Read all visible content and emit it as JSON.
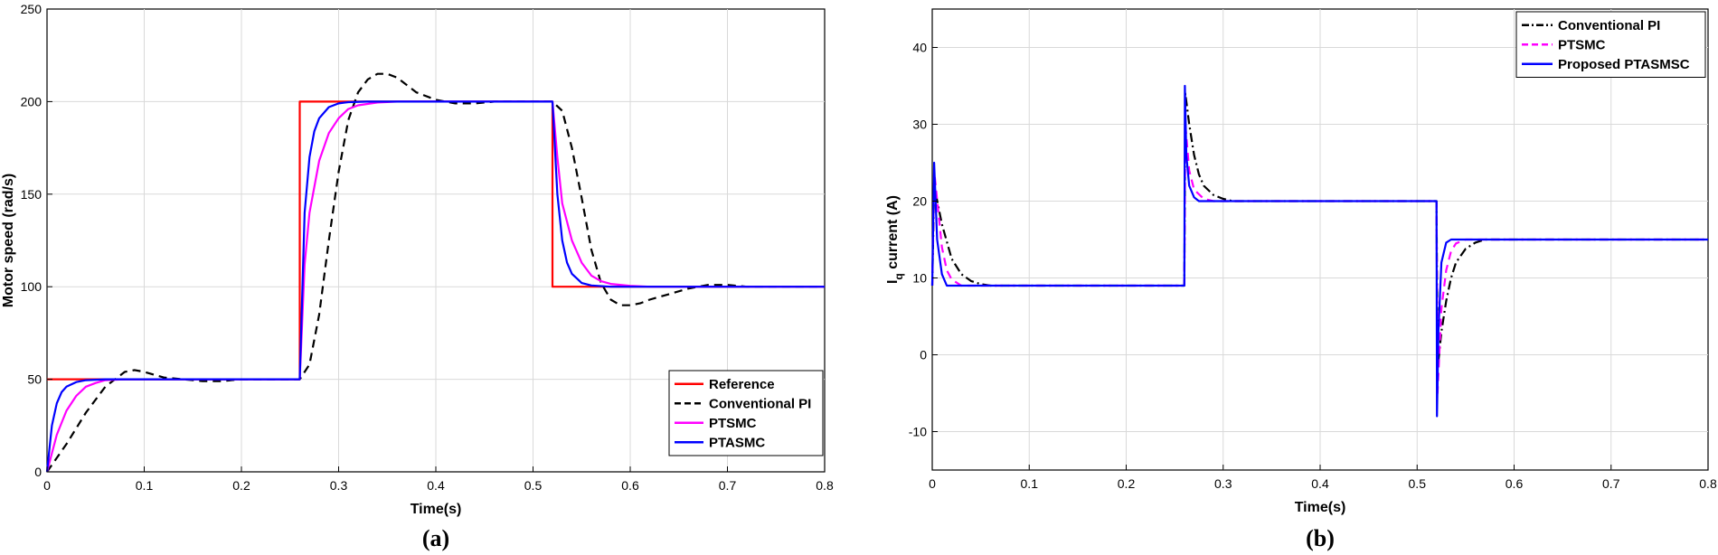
{
  "chart_data": [
    {
      "type": "line",
      "caption": "(a)",
      "xlabel": "Time(s)",
      "ylabel": "Motor speed (rad/s)",
      "xlim": [
        0,
        0.8
      ],
      "ylim": [
        0,
        250
      ],
      "xticks": [
        0,
        0.1,
        0.2,
        0.3,
        0.4,
        0.5,
        0.6,
        0.7,
        0.8
      ],
      "xtick_labels": [
        "0",
        "0.1",
        "0.2",
        "0.3",
        "0.4",
        "0.5",
        "0.6",
        "0.7",
        "0.8"
      ],
      "yticks": [
        0,
        50,
        100,
        150,
        200,
        250
      ],
      "ytick_labels": [
        "0",
        "50",
        "100",
        "150",
        "200",
        "250"
      ],
      "grid": true,
      "legend_position": "bottom-right",
      "series": [
        {
          "name": "Reference",
          "color": "#ff0000",
          "dash": "solid",
          "x": [
            0,
            0.26,
            0.26,
            0.52,
            0.52,
            0.8
          ],
          "y": [
            50,
            50,
            200,
            200,
            100,
            100
          ]
        },
        {
          "name": "Conventional PI",
          "color": "#000000",
          "dash": "dashed",
          "x": [
            0,
            0.02,
            0.04,
            0.06,
            0.08,
            0.09,
            0.1,
            0.12,
            0.14,
            0.16,
            0.18,
            0.2,
            0.22,
            0.26,
            0.27,
            0.28,
            0.29,
            0.3,
            0.31,
            0.32,
            0.33,
            0.34,
            0.35,
            0.36,
            0.38,
            0.4,
            0.42,
            0.44,
            0.46,
            0.48,
            0.5,
            0.52,
            0.53,
            0.54,
            0.55,
            0.56,
            0.57,
            0.58,
            0.59,
            0.6,
            0.61,
            0.62,
            0.64,
            0.66,
            0.68,
            0.7,
            0.72,
            0.74,
            0.76,
            0.78,
            0.8
          ],
          "y": [
            0,
            15,
            32,
            46,
            54,
            55,
            54,
            51,
            50,
            49,
            49,
            50,
            50,
            50,
            58,
            85,
            125,
            162,
            190,
            205,
            212,
            215,
            215,
            213,
            205,
            201,
            199,
            199,
            200,
            200,
            200,
            200,
            195,
            175,
            148,
            120,
            102,
            93,
            90,
            90,
            91,
            93,
            96,
            99,
            101,
            101,
            100,
            100,
            100,
            100,
            100
          ]
        },
        {
          "name": "PTSMC",
          "color": "#ff00ff",
          "dash": "solid",
          "x": [
            0,
            0.01,
            0.02,
            0.03,
            0.04,
            0.05,
            0.06,
            0.08,
            0.26,
            0.265,
            0.27,
            0.28,
            0.29,
            0.3,
            0.31,
            0.32,
            0.34,
            0.36,
            0.52,
            0.525,
            0.53,
            0.54,
            0.55,
            0.56,
            0.57,
            0.58,
            0.6,
            0.62,
            0.8
          ],
          "y": [
            0,
            20,
            33,
            41,
            46,
            48,
            49.5,
            50,
            50,
            112,
            140,
            168,
            183,
            191,
            196,
            198,
            199.5,
            200,
            200,
            170,
            145,
            125,
            113,
            106,
            103,
            101.5,
            100.5,
            100,
            100
          ]
        },
        {
          "name": "PTASMC",
          "color": "#0000ff",
          "dash": "solid",
          "x": [
            0,
            0.005,
            0.01,
            0.015,
            0.02,
            0.03,
            0.04,
            0.06,
            0.26,
            0.265,
            0.27,
            0.275,
            0.28,
            0.29,
            0.3,
            0.31,
            0.33,
            0.52,
            0.525,
            0.53,
            0.535,
            0.54,
            0.55,
            0.56,
            0.58,
            0.8
          ],
          "y": [
            0,
            25,
            37,
            43,
            46,
            48.5,
            49.5,
            50,
            50,
            140,
            170,
            184,
            191,
            197,
            199,
            199.7,
            200,
            200,
            150,
            125,
            113,
            107,
            102,
            100.7,
            100,
            100
          ]
        }
      ]
    },
    {
      "type": "line",
      "caption": "(b)",
      "xlabel": "Time(s)",
      "ylabel_main": "I",
      "ylabel_sub": "q",
      "ylabel_rest": " current (A)",
      "xlim": [
        0,
        0.8
      ],
      "ylim": [
        -15,
        45
      ],
      "xticks": [
        0,
        0.1,
        0.2,
        0.3,
        0.4,
        0.5,
        0.6,
        0.7,
        0.8
      ],
      "xtick_labels": [
        "0",
        "0.1",
        "0.2",
        "0.3",
        "0.4",
        "0.5",
        "0.6",
        "0.7",
        "0.8"
      ],
      "yticks": [
        -10,
        0,
        10,
        20,
        30,
        40
      ],
      "ytick_labels": [
        "-10",
        "0",
        "10",
        "20",
        "30",
        "40"
      ],
      "grid": true,
      "legend_position": "top-right",
      "series": [
        {
          "name": "Conventional PI",
          "color": "#000000",
          "dash": "dashdot",
          "x": [
            0,
            0.002,
            0.01,
            0.02,
            0.03,
            0.04,
            0.05,
            0.06,
            0.26,
            0.261,
            0.265,
            0.27,
            0.275,
            0.28,
            0.29,
            0.3,
            0.31,
            0.52,
            0.521,
            0.525,
            0.53,
            0.535,
            0.54,
            0.55,
            0.56,
            0.57,
            0.8
          ],
          "y": [
            9,
            22,
            17,
            12.5,
            10.5,
            9.6,
            9.2,
            9,
            9,
            34,
            30,
            26,
            23.5,
            22,
            20.8,
            20.3,
            20,
            20,
            -2,
            3,
            7,
            10,
            12,
            13.8,
            14.6,
            15,
            15
          ]
        },
        {
          "name": "PTSMC",
          "color": "#ff00ff",
          "dash": "dashed",
          "x": [
            0,
            0.002,
            0.01,
            0.015,
            0.02,
            0.03,
            0.26,
            0.261,
            0.265,
            0.27,
            0.28,
            0.29,
            0.52,
            0.521,
            0.525,
            0.53,
            0.535,
            0.54,
            0.55,
            0.8
          ],
          "y": [
            9,
            24,
            14,
            11,
            9.8,
            9,
            9,
            30,
            24,
            21.5,
            20.3,
            20,
            20,
            -5,
            6,
            11,
            13.5,
            14.5,
            15,
            15
          ]
        },
        {
          "name": "Proposed PTASMSC",
          "color": "#0000ff",
          "dash": "solid",
          "x": [
            0,
            0.002,
            0.005,
            0.01,
            0.015,
            0.26,
            0.2605,
            0.262,
            0.265,
            0.27,
            0.275,
            0.52,
            0.5205,
            0.522,
            0.525,
            0.53,
            0.535,
            0.8
          ],
          "y": [
            9,
            25,
            15,
            10.5,
            9,
            9,
            35,
            26,
            22,
            20.5,
            20,
            20,
            -8,
            3,
            12,
            14.6,
            15,
            15
          ]
        }
      ]
    }
  ]
}
